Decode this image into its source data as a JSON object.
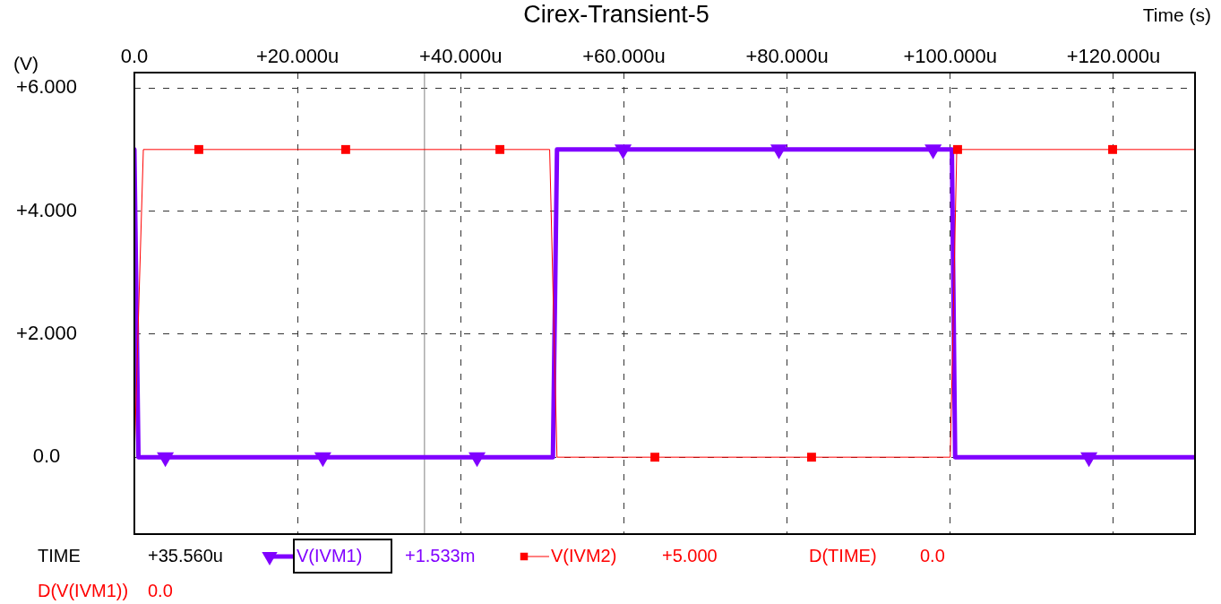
{
  "chart_data": {
    "type": "line",
    "title": "Cirex-Transient-5",
    "xlabel": "Time (s)",
    "ylabel": "(V)",
    "series": [
      {
        "name": "V(IVM1)",
        "color": "#8000ff",
        "marker": "triangle",
        "x": [
          0,
          0.5,
          3.8,
          23.1,
          42,
          51.3,
          51.8,
          59.9,
          79,
          97.9,
          100.2,
          100.6,
          117,
          130
        ],
        "values": [
          5,
          0,
          0,
          0,
          0,
          0,
          5,
          5,
          5,
          5,
          5,
          0,
          0,
          0
        ]
      },
      {
        "name": "V(IVM2)",
        "color": "#ff0000",
        "marker": "square",
        "x": [
          0,
          1.1,
          7.9,
          25.9,
          44.8,
          50.9,
          51.8,
          63.8,
          83,
          100,
          100.8,
          100.9,
          119.9,
          130
        ],
        "values": [
          0,
          5,
          5,
          5,
          5,
          5,
          0,
          0,
          0,
          0,
          5,
          5,
          5,
          5
        ]
      }
    ],
    "xlim": [
      0,
      130
    ],
    "xticks": [
      {
        "value": 0,
        "label": "0.0"
      },
      {
        "value": 20,
        "label": "+20.000u"
      },
      {
        "value": 40,
        "label": "+40.000u"
      },
      {
        "value": 60,
        "label": "+60.000u"
      },
      {
        "value": 80,
        "label": "+80.000u"
      },
      {
        "value": 100,
        "label": "+100.000u"
      },
      {
        "value": 120,
        "label": "+120.000u"
      }
    ],
    "ylim": [
      -1.25,
      6.25
    ],
    "yticks": [
      {
        "value": 0,
        "label": "0.0"
      },
      {
        "value": 2,
        "label": "+2.000"
      },
      {
        "value": 4,
        "label": "+4.000"
      },
      {
        "value": 6,
        "label": "+6.000"
      }
    ],
    "grid": true,
    "legend": "bottom",
    "ref_lines": [
      {
        "axis": "x",
        "value": 35.56,
        "color": "#808080"
      }
    ],
    "annotations": [
      "TIME",
      "+35.560u",
      "+1.533m",
      "+5.000",
      "D(TIME)",
      "0.0",
      "D(V(IVM1))",
      "0.0"
    ]
  }
}
